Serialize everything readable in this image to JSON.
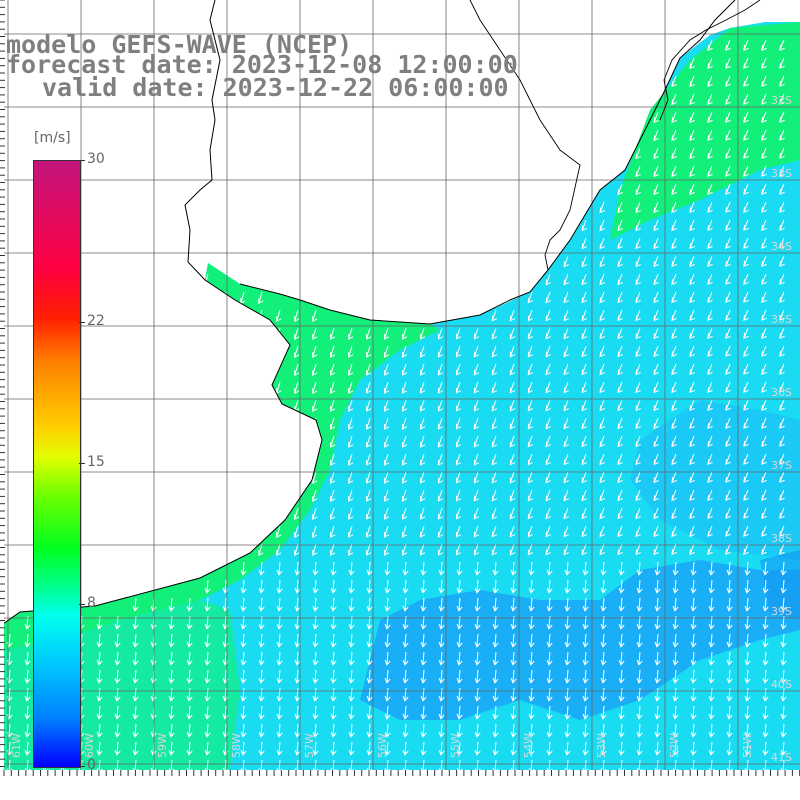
{
  "title": {
    "model": "modelo GEFS-WAVE (NCEP)",
    "forecast": "forecast date: 2023-12-08 12:00:00",
    "valid": "valid date: 2023-12-22 06:00:00"
  },
  "colorbar": {
    "unit": "[m/s]",
    "ticks": [
      "30",
      "22",
      "15",
      "8",
      "0"
    ],
    "tick_values": [
      30,
      22,
      15,
      8,
      0
    ],
    "range": [
      0,
      30
    ],
    "colors": [
      "#0000ff",
      "#0080ff",
      "#00ffee",
      "#00ff20",
      "#e0ff00",
      "#ff7f00",
      "#ff0040",
      "#c2157d"
    ]
  },
  "map": {
    "type": "heatmap",
    "variable": "wind speed with direction arrows",
    "land_color": "#ffffff",
    "grid": true,
    "lon_labels": [
      "61W",
      "60W",
      "59W",
      "58W",
      "57W",
      "56W",
      "55W",
      "54W",
      "53W",
      "52W",
      "51W"
    ],
    "lat_labels": [
      "32S",
      "33S",
      "34S",
      "35S",
      "36S",
      "37S",
      "38S",
      "39S",
      "40S",
      "41S"
    ],
    "arrow_direction": "toward south-southwest"
  }
}
